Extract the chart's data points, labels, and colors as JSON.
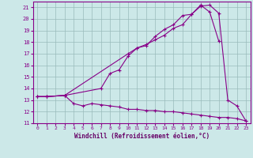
{
  "xlabel": "Windchill (Refroidissement éolien,°C)",
  "background_color": "#cce8e8",
  "grid_color": "#99bbbb",
  "line_color": "#880088",
  "xlim": [
    -0.5,
    23.5
  ],
  "ylim": [
    11,
    21.5
  ],
  "xticks": [
    0,
    1,
    2,
    3,
    4,
    5,
    6,
    7,
    8,
    9,
    10,
    11,
    12,
    13,
    14,
    15,
    16,
    17,
    18,
    19,
    20,
    21,
    22,
    23
  ],
  "yticks": [
    11,
    12,
    13,
    14,
    15,
    16,
    17,
    18,
    19,
    20,
    21
  ],
  "series1_x": [
    0,
    1,
    3,
    10,
    11,
    12,
    13,
    14,
    15,
    16,
    17,
    18,
    19,
    20,
    21,
    22,
    23
  ],
  "series1_y": [
    13.3,
    13.3,
    13.4,
    17.0,
    17.5,
    17.7,
    18.5,
    19.1,
    19.5,
    20.3,
    20.4,
    21.1,
    21.2,
    20.5,
    13.0,
    12.5,
    11.2
  ],
  "series2_x": [
    0,
    1,
    3,
    4,
    5,
    6,
    7,
    8,
    9,
    10,
    11,
    12,
    13,
    14,
    15,
    16,
    17,
    18,
    19,
    20,
    21,
    22,
    23
  ],
  "series2_y": [
    13.3,
    13.3,
    13.4,
    12.7,
    12.5,
    12.7,
    12.6,
    12.5,
    12.4,
    12.2,
    12.2,
    12.1,
    12.1,
    12.0,
    12.0,
    11.9,
    11.8,
    11.7,
    11.6,
    11.5,
    11.5,
    11.4,
    11.2
  ],
  "series3_x": [
    0,
    1,
    3,
    7,
    8,
    9,
    10,
    11,
    12,
    13,
    14,
    15,
    16,
    17,
    18,
    19,
    20
  ],
  "series3_y": [
    13.3,
    13.3,
    13.4,
    14.0,
    15.3,
    15.6,
    16.8,
    17.5,
    17.8,
    18.2,
    18.6,
    19.2,
    19.5,
    20.4,
    21.2,
    20.6,
    18.1
  ]
}
